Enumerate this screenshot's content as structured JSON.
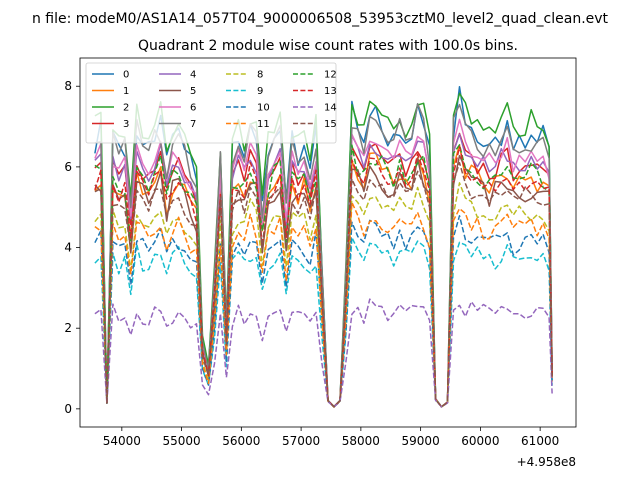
{
  "suptitle": "n file: modeM0/AS1A14_057T04_9000006508_53953cztM0_level2_quad_clean.evt",
  "chart_data": {
    "type": "line",
    "title": "Quadrant 2 module wise count rates with 100.0s bins.",
    "xlabel": "",
    "ylabel": "",
    "x_offset_label": "+4.958e8",
    "xlim": [
      53300,
      61600
    ],
    "ylim": [
      -0.45,
      8.7
    ],
    "xticks": [
      54000,
      55000,
      56000,
      57000,
      58000,
      59000,
      60000,
      61000
    ],
    "yticks": [
      0,
      2,
      4,
      6,
      8
    ],
    "legend_position": "upper-left",
    "legend_ncol": 4,
    "x": [
      53550,
      53650,
      53750,
      53850,
      53950,
      54050,
      54150,
      54250,
      54350,
      54450,
      54550,
      54650,
      54750,
      54850,
      54950,
      55050,
      55150,
      55250,
      55350,
      55450,
      55550,
      55650,
      55750,
      55850,
      55950,
      56050,
      56150,
      56250,
      56350,
      56450,
      56550,
      56650,
      56750,
      56850,
      56950,
      57050,
      57150,
      57250,
      57350,
      57450,
      57550,
      57650,
      57750,
      57850,
      57950,
      58050,
      58150,
      58250,
      58350,
      58450,
      58550,
      58650,
      58750,
      58850,
      58950,
      59050,
      59150,
      59250,
      59350,
      59450,
      59550,
      59650,
      59750,
      59850,
      59950,
      60050,
      60150,
      60250,
      60350,
      60450,
      60550,
      60650,
      60750,
      60850,
      60950,
      61050,
      61150,
      61200
    ],
    "series": [
      {
        "name": "0",
        "color": "#1f77b4",
        "dash": "solid",
        "base": 6.35,
        "noise": 0.35,
        "hf": 1.0
      },
      {
        "name": "1",
        "color": "#ff7f0e",
        "dash": "solid",
        "base": 5.8,
        "noise": 0.3,
        "hf": 0.92
      },
      {
        "name": "2",
        "color": "#2ca02c",
        "dash": "solid",
        "base": 6.5,
        "noise": 0.3,
        "hf": 1.02
      },
      {
        "name": "3",
        "color": "#d62728",
        "dash": "solid",
        "base": 5.9,
        "noise": 0.25,
        "hf": 0.96
      },
      {
        "name": "4",
        "color": "#9467bd",
        "dash": "solid",
        "base": 5.9,
        "noise": 0.25,
        "hf": 0.98
      },
      {
        "name": "5",
        "color": "#8c564b",
        "dash": "solid",
        "base": 5.4,
        "noise": 0.3,
        "hf": 0.95
      },
      {
        "name": "6",
        "color": "#e377c2",
        "dash": "solid",
        "base": 6.05,
        "noise": 0.25,
        "hf": 0.98
      },
      {
        "name": "7",
        "color": "#7f7f7f",
        "dash": "solid",
        "base": 6.4,
        "noise": 0.35,
        "hf": 0.98
      },
      {
        "name": "8",
        "color": "#bcbd22",
        "dash": "dashed",
        "base": 5.05,
        "noise": 0.25,
        "hf": 0.9
      },
      {
        "name": "9",
        "color": "#17becf",
        "dash": "dashed",
        "base": 4.0,
        "noise": 0.25,
        "hf": 0.88
      },
      {
        "name": "10",
        "color": "#1f77b4",
        "dash": "dashed",
        "base": 4.35,
        "noise": 0.25,
        "hf": 0.9
      },
      {
        "name": "11",
        "color": "#ff7f0e",
        "dash": "dashed",
        "base": 4.6,
        "noise": 0.25,
        "hf": 0.92
      },
      {
        "name": "12",
        "color": "#2ca02c",
        "dash": "dashed",
        "base": 5.75,
        "noise": 0.3,
        "hf": 0.95
      },
      {
        "name": "13",
        "color": "#d62728",
        "dash": "dashed",
        "base": 5.6,
        "noise": 0.25,
        "hf": 0.95
      },
      {
        "name": "14",
        "color": "#9467bd",
        "dash": "dashed",
        "base": 2.8,
        "noise": 0.25,
        "hf": 0.8
      },
      {
        "name": "15",
        "color": "#8c564b",
        "dash": "dashed",
        "base": 5.4,
        "noise": 0.25,
        "hf": 0.93
      }
    ],
    "profile": [
      1.0,
      1.02,
      0.05,
      1.0,
      0.95,
      0.98,
      0.75,
      1.05,
      0.98,
      0.95,
      1.0,
      1.05,
      0.9,
      1.0,
      1.02,
      0.95,
      0.9,
      0.85,
      0.25,
      0.15,
      0.5,
      0.95,
      0.3,
      0.95,
      1.0,
      0.95,
      1.05,
      1.0,
      0.75,
      0.95,
      1.0,
      1.02,
      0.75,
      1.0,
      0.95,
      0.98,
      0.9,
      1.02,
      0.5,
      0.08,
      0.0,
      0.08,
      0.5,
      1.1,
      1.05,
      1.0,
      1.1,
      1.08,
      1.05,
      1.02,
      1.0,
      1.05,
      1.0,
      1.02,
      1.1,
      1.05,
      0.95,
      0.1,
      0.0,
      0.06,
      1.05,
      1.15,
      1.05,
      1.03,
      1.02,
      1.0,
      0.98,
      1.0,
      1.02,
      1.05,
      0.98,
      1.0,
      1.0,
      1.02,
      0.98,
      1.0,
      0.95,
      0.15
    ]
  }
}
